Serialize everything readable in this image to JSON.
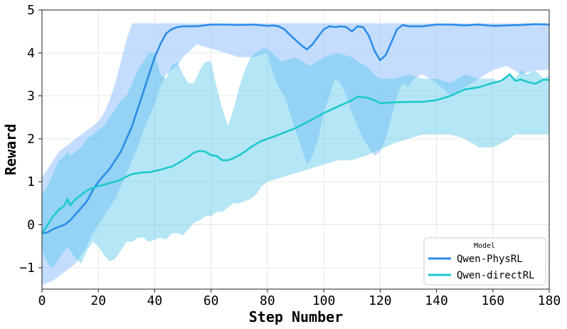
{
  "chart_data": {
    "type": "line",
    "xlabel": "Step Number",
    "ylabel": "Reward",
    "xlim": [
      0,
      180
    ],
    "ylim": [
      -1.5,
      5
    ],
    "xticks": [
      0,
      20,
      40,
      60,
      80,
      100,
      120,
      140,
      160,
      180
    ],
    "yticks": [
      -1,
      0,
      1,
      2,
      3,
      4,
      5
    ],
    "grid": true,
    "legend": {
      "title": "Model",
      "placement": "lower-right"
    },
    "series": [
      {
        "name": "Qwen-PhysRL",
        "color": "#2b8ce8",
        "band_color": "#9cc6ff",
        "x": [
          0,
          2,
          4,
          6,
          8,
          10,
          12,
          14,
          16,
          18,
          20,
          22,
          24,
          26,
          28,
          30,
          32,
          34,
          36,
          38,
          40,
          42,
          44,
          46,
          48,
          50,
          55,
          60,
          65,
          70,
          75,
          80,
          82,
          84,
          86,
          88,
          90,
          92,
          94,
          96,
          98,
          100,
          102,
          104,
          106,
          108,
          110,
          112,
          114,
          116,
          118,
          120,
          122,
          124,
          126,
          128,
          130,
          132,
          135,
          140,
          145,
          150,
          155,
          160,
          165,
          170,
          175,
          180
        ],
        "values": [
          -0.2,
          -0.18,
          -0.1,
          -0.05,
          0.0,
          0.1,
          0.25,
          0.4,
          0.55,
          0.8,
          1.0,
          1.15,
          1.3,
          1.5,
          1.7,
          2.0,
          2.3,
          2.7,
          3.1,
          3.5,
          3.9,
          4.2,
          4.45,
          4.55,
          4.6,
          4.62,
          4.62,
          4.66,
          4.66,
          4.65,
          4.66,
          4.63,
          4.64,
          4.62,
          4.55,
          4.42,
          4.3,
          4.18,
          4.08,
          4.2,
          4.38,
          4.55,
          4.62,
          4.6,
          4.62,
          4.6,
          4.5,
          4.62,
          4.6,
          4.4,
          4.05,
          3.83,
          3.95,
          4.25,
          4.55,
          4.65,
          4.62,
          4.62,
          4.62,
          4.66,
          4.66,
          4.64,
          4.66,
          4.63,
          4.64,
          4.65,
          4.67,
          4.66
        ],
        "upper": [
          1.1,
          1.3,
          1.5,
          1.7,
          1.8,
          1.9,
          2.0,
          2.1,
          2.2,
          2.3,
          2.4,
          2.6,
          2.9,
          3.3,
          3.8,
          4.3,
          4.69,
          4.69,
          4.69,
          4.69,
          4.69,
          4.69,
          4.69,
          4.69,
          4.69,
          4.69,
          4.69,
          4.69,
          4.69,
          4.69,
          4.69,
          4.69,
          4.69,
          4.69,
          4.69,
          4.69,
          4.69,
          4.69,
          4.69,
          4.69,
          4.69,
          4.69,
          4.69,
          4.69,
          4.69,
          4.69,
          4.69,
          4.69,
          4.69,
          4.69,
          4.69,
          4.69,
          4.69,
          4.69,
          4.69,
          4.69,
          4.69,
          4.69,
          4.69,
          4.69,
          4.69,
          4.69,
          4.69,
          4.69,
          4.69,
          4.69,
          4.69,
          4.69
        ],
        "lower": [
          -1.4,
          -1.35,
          -1.3,
          -1.2,
          -1.1,
          -1.0,
          -0.9,
          -0.7,
          -0.5,
          -0.2,
          0.0,
          0.2,
          0.4,
          0.6,
          0.9,
          1.2,
          1.5,
          1.8,
          2.2,
          2.5,
          2.8,
          3.2,
          3.5,
          3.6,
          3.7,
          3.9,
          4.2,
          4.1,
          4.0,
          3.9,
          3.9,
          4.0,
          3.5,
          3.2,
          3.0,
          2.6,
          2.2,
          1.8,
          1.4,
          1.6,
          2.0,
          2.6,
          3.0,
          3.4,
          3.3,
          3.0,
          2.6,
          2.3,
          2.0,
          1.8,
          1.6,
          1.7,
          2.0,
          2.5,
          3.0,
          3.3,
          3.2,
          3.4,
          3.5,
          3.3,
          3.0,
          3.2,
          3.4,
          3.6,
          3.7,
          3.5,
          3.6,
          3.6
        ]
      },
      {
        "name": "Qwen-directRL",
        "color": "#1cc9cc",
        "band_color": "#5bc8e8",
        "x": [
          0,
          2,
          4,
          6,
          8,
          9,
          10,
          12,
          14,
          16,
          18,
          20,
          22,
          24,
          26,
          28,
          30,
          32,
          34,
          36,
          38,
          40,
          42,
          44,
          46,
          48,
          50,
          52,
          54,
          56,
          58,
          60,
          62,
          64,
          66,
          68,
          70,
          72,
          74,
          76,
          78,
          80,
          85,
          90,
          95,
          100,
          105,
          110,
          112,
          115,
          118,
          120,
          125,
          130,
          135,
          140,
          145,
          150,
          155,
          160,
          163,
          166,
          168,
          170,
          172,
          175,
          178,
          180
        ],
        "values": [
          -0.2,
          0.0,
          0.2,
          0.35,
          0.45,
          0.6,
          0.45,
          0.6,
          0.7,
          0.8,
          0.85,
          0.9,
          0.93,
          0.97,
          1.0,
          1.05,
          1.12,
          1.18,
          1.2,
          1.22,
          1.22,
          1.25,
          1.28,
          1.32,
          1.35,
          1.42,
          1.5,
          1.58,
          1.68,
          1.72,
          1.7,
          1.62,
          1.6,
          1.5,
          1.5,
          1.55,
          1.62,
          1.7,
          1.8,
          1.88,
          1.95,
          2.0,
          2.12,
          2.25,
          2.42,
          2.6,
          2.75,
          2.9,
          2.98,
          2.96,
          2.9,
          2.83,
          2.85,
          2.86,
          2.86,
          2.9,
          3.0,
          3.15,
          3.2,
          3.3,
          3.35,
          3.5,
          3.35,
          3.38,
          3.33,
          3.28,
          3.38,
          3.37
        ],
        "upper": [
          0.7,
          0.9,
          1.2,
          1.5,
          1.6,
          1.7,
          1.6,
          1.7,
          1.8,
          2.0,
          2.1,
          2.2,
          2.3,
          2.5,
          2.7,
          2.9,
          3.0,
          3.3,
          3.6,
          3.8,
          4.0,
          4.0,
          3.5,
          3.4,
          3.7,
          3.8,
          3.5,
          3.3,
          3.3,
          3.6,
          3.8,
          3.8,
          3.2,
          2.7,
          2.3,
          2.7,
          3.2,
          3.6,
          3.9,
          4.0,
          4.1,
          4.1,
          3.8,
          3.9,
          3.7,
          3.9,
          4.0,
          3.9,
          3.8,
          3.7,
          3.5,
          3.4,
          3.4,
          3.5,
          3.4,
          3.4,
          3.3,
          3.5,
          3.4,
          3.4,
          3.3,
          3.5,
          3.4,
          3.6,
          3.5,
          3.6,
          3.4,
          3.5
        ],
        "lower": [
          -0.6,
          -0.9,
          -1.0,
          -0.8,
          -0.6,
          -0.5,
          -0.6,
          -0.8,
          -0.9,
          -0.6,
          -0.4,
          -0.5,
          -0.7,
          -0.85,
          -0.8,
          -0.6,
          -0.4,
          -0.4,
          -0.3,
          -0.3,
          -0.4,
          -0.35,
          -0.3,
          -0.35,
          -0.2,
          -0.2,
          -0.25,
          -0.1,
          0.05,
          0.1,
          0.2,
          0.2,
          0.3,
          0.3,
          0.4,
          0.5,
          0.5,
          0.55,
          0.6,
          0.7,
          0.9,
          1.0,
          1.1,
          1.2,
          1.3,
          1.4,
          1.5,
          1.5,
          1.55,
          1.6,
          1.7,
          1.75,
          1.9,
          2.0,
          2.1,
          2.1,
          2.1,
          2.0,
          1.8,
          1.8,
          1.9,
          2.0,
          2.1,
          2.1,
          2.1,
          2.1,
          2.1,
          2.1
        ]
      }
    ]
  }
}
